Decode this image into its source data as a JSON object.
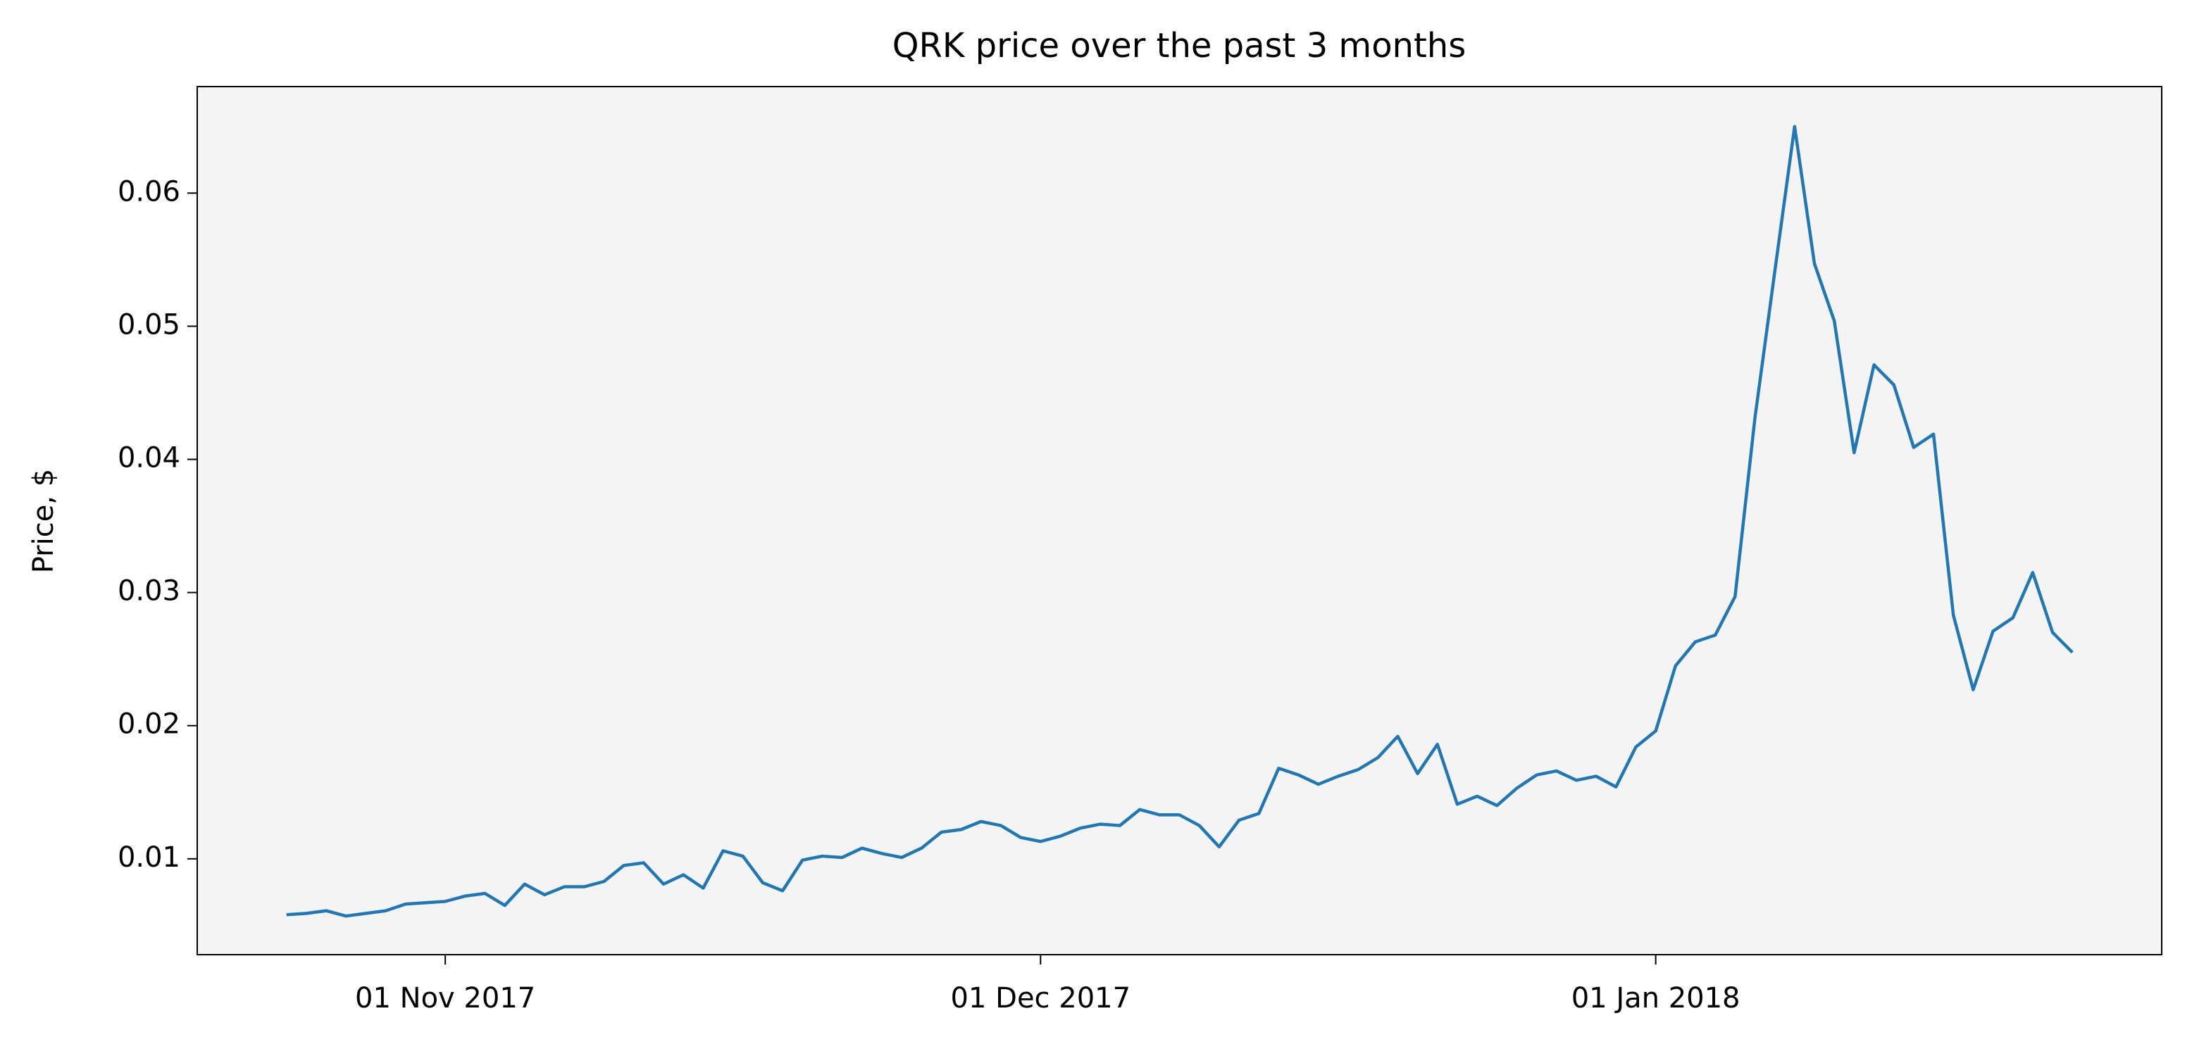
{
  "chart_data": {
    "type": "line",
    "title": "QRK price over the past 3 months",
    "y_label": "Price, $",
    "x": [
      "2017-10-24",
      "2017-10-25",
      "2017-10-26",
      "2017-10-27",
      "2017-10-28",
      "2017-10-29",
      "2017-10-30",
      "2017-10-31",
      "2017-11-01",
      "2017-11-02",
      "2017-11-03",
      "2017-11-04",
      "2017-11-05",
      "2017-11-06",
      "2017-11-07",
      "2017-11-08",
      "2017-11-09",
      "2017-11-10",
      "2017-11-11",
      "2017-11-12",
      "2017-11-13",
      "2017-11-14",
      "2017-11-15",
      "2017-11-16",
      "2017-11-17",
      "2017-11-18",
      "2017-11-19",
      "2017-11-20",
      "2017-11-21",
      "2017-11-22",
      "2017-11-23",
      "2017-11-24",
      "2017-11-25",
      "2017-11-26",
      "2017-11-27",
      "2017-11-28",
      "2017-11-29",
      "2017-11-30",
      "2017-12-01",
      "2017-12-02",
      "2017-12-03",
      "2017-12-04",
      "2017-12-05",
      "2017-12-06",
      "2017-12-07",
      "2017-12-08",
      "2017-12-09",
      "2017-12-10",
      "2017-12-11",
      "2017-12-12",
      "2017-12-13",
      "2017-12-14",
      "2017-12-15",
      "2017-12-16",
      "2017-12-17",
      "2017-12-18",
      "2017-12-19",
      "2017-12-20",
      "2017-12-21",
      "2017-12-22",
      "2017-12-23",
      "2017-12-24",
      "2017-12-25",
      "2017-12-26",
      "2017-12-27",
      "2017-12-28",
      "2017-12-29",
      "2017-12-30",
      "2017-12-31",
      "2018-01-01",
      "2018-01-02",
      "2018-01-03",
      "2018-01-04",
      "2018-01-05",
      "2018-01-06",
      "2018-01-07",
      "2018-01-08",
      "2018-01-09",
      "2018-01-10",
      "2018-01-11",
      "2018-01-12",
      "2018-01-13",
      "2018-01-14",
      "2018-01-15",
      "2018-01-16",
      "2018-01-17",
      "2018-01-18",
      "2018-01-19",
      "2018-01-20",
      "2018-01-21",
      "2018-01-22"
    ],
    "series": [
      {
        "name": "QRK",
        "color": "#1f77b4",
        "values": [
          0.0058,
          0.0059,
          0.0061,
          0.0057,
          0.0059,
          0.0061,
          0.0066,
          0.0067,
          0.0068,
          0.0072,
          0.0074,
          0.0065,
          0.0081,
          0.0073,
          0.0079,
          0.0079,
          0.0083,
          0.0095,
          0.0097,
          0.0081,
          0.0088,
          0.0078,
          0.0106,
          0.0102,
          0.0082,
          0.0076,
          0.0099,
          0.0102,
          0.0101,
          0.0108,
          0.0104,
          0.0101,
          0.0108,
          0.012,
          0.0122,
          0.0128,
          0.0125,
          0.0116,
          0.0113,
          0.0117,
          0.0123,
          0.0126,
          0.0125,
          0.0137,
          0.0133,
          0.0133,
          0.0125,
          0.0109,
          0.0129,
          0.0134,
          0.0168,
          0.0163,
          0.0156,
          0.0162,
          0.0167,
          0.0176,
          0.0192,
          0.0164,
          0.0186,
          0.0141,
          0.0147,
          0.014,
          0.0153,
          0.0163,
          0.0166,
          0.0159,
          0.0162,
          0.0154,
          0.0184,
          0.0196,
          0.0245,
          0.0263,
          0.0268,
          0.0297,
          0.0431,
          0.0541,
          0.065,
          0.0547,
          0.0504,
          0.0405,
          0.0471,
          0.0456,
          0.0409,
          0.0419,
          0.0283,
          0.0227,
          0.0271,
          0.0281,
          0.0315,
          0.027,
          0.0255
        ]
      }
    ],
    "xlim": [
      "2017-10-19T12:00:00",
      "2018-01-26T12:00:00"
    ],
    "xticks": [
      {
        "value": "2017-11-01",
        "label": "01 Nov 2017"
      },
      {
        "value": "2017-12-01",
        "label": "01 Dec 2017"
      },
      {
        "value": "2018-01-01",
        "label": "01 Jan 2018"
      }
    ],
    "ylim": [
      0.0028,
      0.068
    ],
    "yticks": [
      0.01,
      0.02,
      0.03,
      0.04,
      0.05,
      0.06
    ],
    "grid": false
  }
}
